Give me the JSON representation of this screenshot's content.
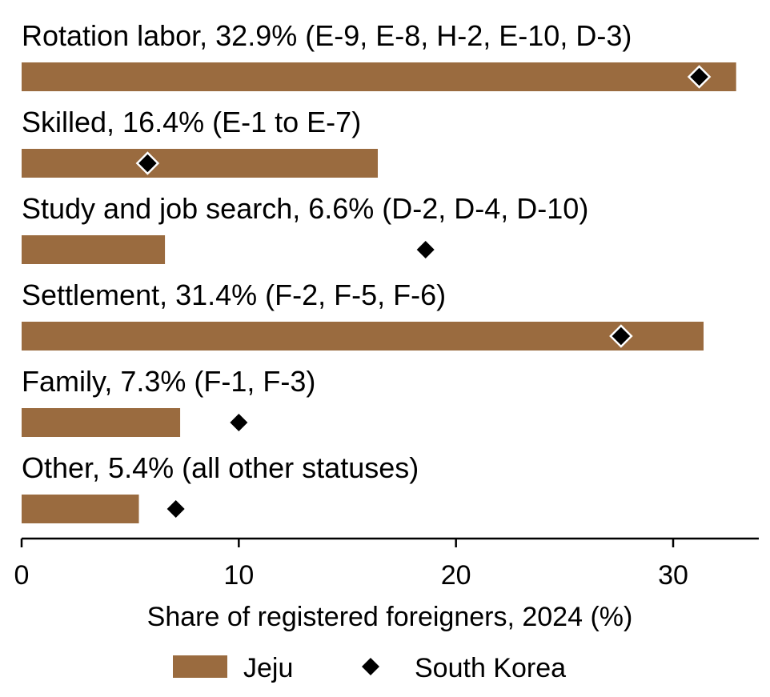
{
  "chart_data": {
    "type": "bar",
    "orientation": "horizontal",
    "categories": [
      "Rotation labor, 32.9% (E-9, E-8, H-2, E-10, D-3)",
      "Skilled, 16.4% (E-1 to E-7)",
      "Study and job search, 6.6% (D-2, D-4, D-10)",
      "Settlement, 31.4% (F-2, F-5, F-6)",
      "Family, 7.3% (F-1, F-3)",
      "Other, 5.4% (all other statuses)"
    ],
    "series": [
      {
        "name": "Jeju",
        "mark": "bar",
        "color": "#9a6b3f",
        "values": [
          32.9,
          16.4,
          6.6,
          31.4,
          7.3,
          5.4
        ]
      },
      {
        "name": "South Korea",
        "mark": "diamond",
        "color": "#000000",
        "values": [
          31.2,
          5.8,
          18.6,
          27.6,
          10.0,
          7.1
        ]
      }
    ],
    "xlabel": "Share of registered foreigners, 2024 (%)",
    "xlim": [
      0,
      34
    ],
    "xticks": [
      0,
      10,
      20,
      30
    ],
    "grid": false,
    "legend_position": "bottom-center"
  }
}
